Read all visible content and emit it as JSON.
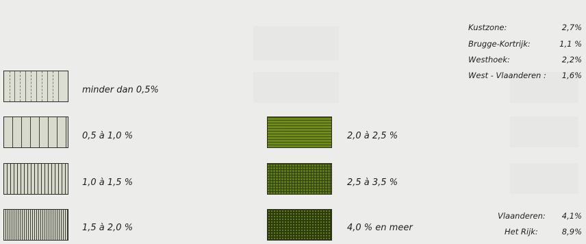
{
  "legend": {
    "items": [
      {
        "label": "minder dan 0,5%"
      },
      {
        "label": "0,5 à 1,0 %"
      },
      {
        "label": "1,0 à 1,5 %"
      },
      {
        "label": "1,5 à 2,0 %"
      },
      {
        "label": "2,0 à 2,5 %"
      },
      {
        "label": "2,5 à 3,5 %"
      },
      {
        "label": "4,0 % en meer"
      }
    ],
    "colors": {
      "green_light": "#6f8a16",
      "green_mid": "#5f7a12",
      "green_dark": "#2d3a0d",
      "beige": "#d8dace",
      "ink": "#2b2b25"
    }
  },
  "stats": {
    "regions": [
      {
        "name": "Kustzone:",
        "value": "2,7%"
      },
      {
        "name": "Brugge-Kortrijk:",
        "value": "1,1 %"
      },
      {
        "name": "Westhoek:",
        "value": "2,2%"
      },
      {
        "name": "West - Vlaanderen :",
        "value": "1,6%"
      }
    ],
    "totals": [
      {
        "name": "Vlaanderen:",
        "value": "4,1%"
      },
      {
        "name": "Het Rijk:",
        "value": "8,9%"
      }
    ]
  }
}
